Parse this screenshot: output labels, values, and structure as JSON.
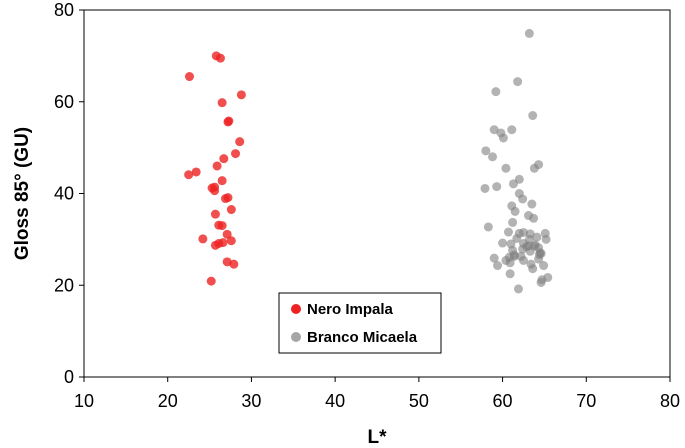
{
  "chart_data": {
    "type": "scatter",
    "xlabel": "L*",
    "ylabel": "Gloss 85° (GU)",
    "xlim": [
      10,
      80
    ],
    "ylim": [
      0,
      80
    ],
    "xticks": [
      10,
      20,
      30,
      40,
      50,
      60,
      70,
      80
    ],
    "yticks": [
      0,
      20,
      40,
      60,
      80
    ],
    "grid": false,
    "legend_position": "bottom-center",
    "series": [
      {
        "name": "Nero Impala",
        "color": "#ee2222",
        "points": [
          [
            25.8,
            70.0
          ],
          [
            26.3,
            69.5
          ],
          [
            22.6,
            65.5
          ],
          [
            28.8,
            61.5
          ],
          [
            26.5,
            59.8
          ],
          [
            27.3,
            55.8
          ],
          [
            27.2,
            55.6
          ],
          [
            28.6,
            51.3
          ],
          [
            26.7,
            47.6
          ],
          [
            25.9,
            46.0
          ],
          [
            28.1,
            48.7
          ],
          [
            23.4,
            44.7
          ],
          [
            22.5,
            44.1
          ],
          [
            26.5,
            42.8
          ],
          [
            25.3,
            41.2
          ],
          [
            25.6,
            40.6
          ],
          [
            25.6,
            41.4
          ],
          [
            27.2,
            39.1
          ],
          [
            26.9,
            38.9
          ],
          [
            27.6,
            36.5
          ],
          [
            25.7,
            35.5
          ],
          [
            26.1,
            33.1
          ],
          [
            26.5,
            33.0
          ],
          [
            27.1,
            31.1
          ],
          [
            24.2,
            30.1
          ],
          [
            26.1,
            29.1
          ],
          [
            26.6,
            29.3
          ],
          [
            27.6,
            29.7
          ],
          [
            25.7,
            28.7
          ],
          [
            27.1,
            25.1
          ],
          [
            27.9,
            24.6
          ],
          [
            25.2,
            20.9
          ]
        ]
      },
      {
        "name": "Branco Micaela",
        "color": "#808080",
        "points": [
          [
            63.2,
            74.9
          ],
          [
            61.8,
            64.4
          ],
          [
            59.2,
            62.2
          ],
          [
            63.6,
            57.0
          ],
          [
            59.0,
            53.9
          ],
          [
            61.1,
            53.9
          ],
          [
            59.8,
            53.2
          ],
          [
            60.1,
            52.1
          ],
          [
            58.0,
            49.3
          ],
          [
            58.8,
            48.0
          ],
          [
            64.3,
            46.3
          ],
          [
            63.8,
            45.5
          ],
          [
            60.4,
            45.5
          ],
          [
            62.0,
            43.1
          ],
          [
            61.3,
            42.1
          ],
          [
            59.3,
            41.5
          ],
          [
            57.9,
            41.1
          ],
          [
            62.0,
            40.0
          ],
          [
            62.4,
            38.8
          ],
          [
            63.5,
            37.7
          ],
          [
            61.1,
            37.3
          ],
          [
            61.5,
            36.1
          ],
          [
            63.1,
            35.2
          ],
          [
            63.7,
            34.6
          ],
          [
            61.2,
            33.7
          ],
          [
            58.3,
            32.7
          ],
          [
            60.7,
            31.6
          ],
          [
            62.0,
            31.3
          ],
          [
            62.5,
            31.5
          ],
          [
            63.3,
            31.2
          ],
          [
            65.1,
            31.3
          ],
          [
            61.7,
            30.2
          ],
          [
            63.2,
            30.0
          ],
          [
            64.1,
            30.5
          ],
          [
            65.2,
            30.0
          ],
          [
            60.0,
            29.2
          ],
          [
            61.0,
            29.0
          ],
          [
            62.5,
            29.1
          ],
          [
            63.1,
            28.6
          ],
          [
            62.9,
            28.4
          ],
          [
            63.9,
            28.8
          ],
          [
            64.3,
            28.2
          ],
          [
            63.8,
            28.5
          ],
          [
            62.4,
            27.9
          ],
          [
            61.2,
            27.6
          ],
          [
            63.3,
            27.4
          ],
          [
            64.5,
            27.1
          ],
          [
            64.6,
            26.9
          ],
          [
            61.4,
            26.6
          ],
          [
            62.2,
            26.3
          ],
          [
            60.8,
            26.1
          ],
          [
            61.4,
            26.3
          ],
          [
            59.0,
            25.9
          ],
          [
            60.4,
            25.4
          ],
          [
            64.3,
            25.7
          ],
          [
            64.4,
            26.7
          ],
          [
            62.5,
            25.4
          ],
          [
            59.4,
            24.3
          ],
          [
            60.9,
            24.9
          ],
          [
            63.4,
            24.6
          ],
          [
            64.9,
            24.3
          ],
          [
            63.6,
            23.6
          ],
          [
            60.9,
            22.5
          ],
          [
            65.4,
            21.7
          ],
          [
            64.7,
            21.2
          ],
          [
            64.6,
            20.6
          ],
          [
            61.9,
            19.2
          ]
        ]
      }
    ]
  }
}
